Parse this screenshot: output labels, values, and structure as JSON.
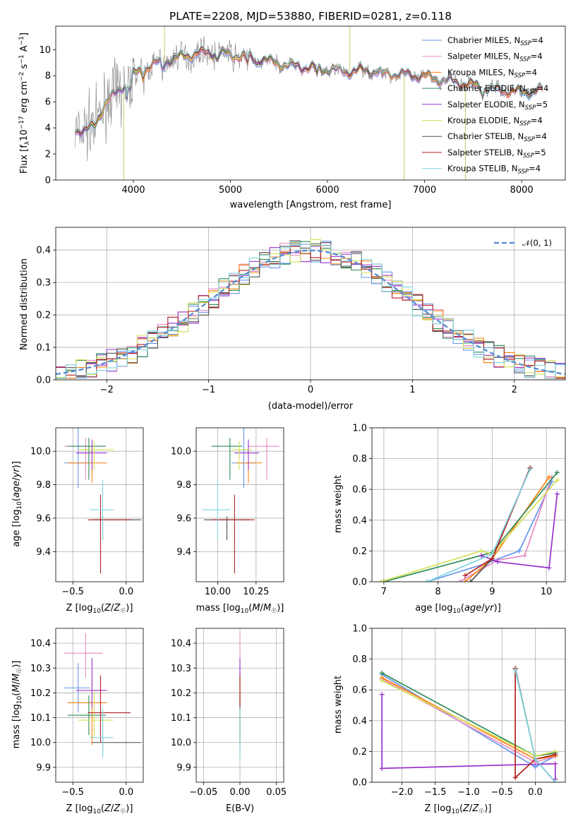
{
  "chart_data": [
    {
      "id": "spectrum",
      "type": "line",
      "title": "PLATE=2208, MJD=53880, FIBERID=0281, z=0.118",
      "xlabel": "wavelength [Angstrom, rest frame]",
      "ylabel": "Flux [fλ10⁻¹⁷ erg cm⁻² s⁻¹ A⁻¹]",
      "xlim": [
        3200,
        8450
      ],
      "ylim": [
        0,
        11.8
      ],
      "xticks": [
        4000,
        5000,
        6000,
        7000,
        8000
      ],
      "yticks": [
        0,
        2,
        4,
        6,
        8,
        10
      ],
      "grid": false,
      "legend_position": "top-right",
      "data_color": "#808080",
      "continuum": {
        "x": [
          3400,
          3500,
          3600,
          3700,
          3800,
          3900,
          4000,
          4200,
          4400,
          4600,
          4800,
          5000,
          5200,
          5400,
          5600,
          5800,
          6000,
          6200,
          6400,
          6600,
          6800,
          7000,
          7200,
          7400,
          7600,
          7800,
          8000,
          8200
        ],
        "y": [
          3.9,
          3.7,
          4.2,
          5.8,
          6.5,
          7.3,
          8.1,
          8.8,
          9.3,
          9.6,
          9.8,
          9.6,
          9.4,
          9.1,
          8.8,
          8.6,
          8.5,
          8.3,
          8.4,
          8.2,
          8.1,
          7.9,
          7.7,
          7.4,
          7.1,
          6.9,
          6.7,
          6.9
        ]
      },
      "series": [
        {
          "name": "Chabrier MILES, N_SSP=4",
          "color": "#6495ed"
        },
        {
          "name": "Salpeter MILES, N_SSP=4",
          "color": "#e78ac3"
        },
        {
          "name": "Kroupa MILES, N_SSP=4",
          "color": "#ff7f0e"
        },
        {
          "name": "Chabrier ELODIE, N_SSP=4",
          "color": "#2e8b57"
        },
        {
          "name": "Salpeter ELODIE, N_SSP=5",
          "color": "#9932cc"
        },
        {
          "name": "Kroupa ELODIE, N_SSP=4",
          "color": "#d4e157"
        },
        {
          "name": "Chabrier STELIB, N_SSP=4",
          "color": "#505050"
        },
        {
          "name": "Salpeter STELIB, N_SSP=5",
          "color": "#b22222"
        },
        {
          "name": "Kroupa STELIB, N_SSP=4",
          "color": "#7fd4e0"
        }
      ]
    },
    {
      "id": "residuals",
      "type": "line",
      "xlabel": "(data-model)/error",
      "ylabel": "Normed distribution",
      "xlim": [
        -2.5,
        2.5
      ],
      "ylim": [
        0,
        0.47
      ],
      "xticks": [
        -2,
        -1,
        0,
        1,
        2
      ],
      "yticks": [
        0.0,
        0.1,
        0.2,
        0.3,
        0.4
      ],
      "grid": true,
      "legend_position": "top-right",
      "reference": {
        "name": "𝒩(0, 1)",
        "mean": 0,
        "sigma": 1,
        "color": "#5b8fd6",
        "style": "dashed"
      },
      "bin_width": 0.1
    },
    {
      "id": "Z-age",
      "type": "scatter",
      "xlabel": "Z [log₁₀(Z/Z☉)]",
      "ylabel": "age  [log₁₀(age/yr)]",
      "xlim": [
        -0.66,
        0.16
      ],
      "ylim": [
        9.22,
        10.14
      ],
      "xticks": [
        -0.5,
        0.0
      ],
      "yticks": [
        9.4,
        9.6,
        9.8,
        10.0
      ],
      "grid": true
    },
    {
      "id": "mass-age",
      "type": "scatter",
      "xlabel": "mass [log₁₀(M/M☉)]",
      "ylabel": "",
      "xlim": [
        9.86,
        10.43
      ],
      "ylim": [
        9.22,
        10.14
      ],
      "xticks": [
        10.0,
        10.25
      ],
      "yticks": [
        9.4,
        9.6,
        9.8,
        10.0
      ],
      "grid": true
    },
    {
      "id": "age-weight",
      "type": "line",
      "xlabel": "age  [log₁₀(age/yr)]",
      "ylabel": "mass weight",
      "xlim": [
        6.78,
        10.35
      ],
      "ylim": [
        0,
        1.0
      ],
      "xticks": [
        7,
        8,
        9,
        10
      ],
      "yticks": [
        0.0,
        0.2,
        0.4,
        0.6,
        0.8,
        1.0
      ],
      "grid": true
    },
    {
      "id": "Z-mass",
      "type": "scatter",
      "xlabel": "Z [log₁₀(Z/Z☉)]",
      "ylabel": "mass [log₁₀(M/M☉)]",
      "xlim": [
        -0.66,
        0.16
      ],
      "ylim": [
        9.84,
        10.46
      ],
      "xticks": [
        -0.5,
        0.0
      ],
      "yticks": [
        9.9,
        10.0,
        10.1,
        10.2,
        10.3,
        10.4
      ],
      "grid": true
    },
    {
      "id": "EBV-mass",
      "type": "scatter",
      "xlabel": "E(B-V)",
      "ylabel": "",
      "xlim": [
        -0.06,
        0.06
      ],
      "ylim": [
        9.84,
        10.46
      ],
      "xticks": [
        -0.05,
        0.0,
        0.05
      ],
      "yticks": [
        9.9,
        10.0,
        10.1,
        10.2,
        10.3,
        10.4
      ],
      "grid": true
    },
    {
      "id": "Z-weight",
      "type": "line",
      "xlabel": "Z [log₁₀(Z/Z☉)]",
      "ylabel": "mass weight",
      "xlim": [
        -2.45,
        0.45
      ],
      "ylim": [
        0,
        1.0
      ],
      "xticks": [
        -2.0,
        -1.5,
        -1.0,
        -0.5,
        0.0
      ],
      "yticks": [
        0.0,
        0.2,
        0.4,
        0.6,
        0.8,
        1.0
      ],
      "grid": true
    }
  ],
  "fits": [
    {
      "color": "#6495ed",
      "Z": [
        -0.45,
        0.13,
        0.11
      ],
      "age": [
        9.93,
        0.15,
        0.24
      ],
      "mass": [
        10.22,
        0.1,
        0.1
      ],
      "mass_age": [
        10.17,
        0.08,
        0.08
      ],
      "aw": [
        [
          7.8,
          0.0
        ],
        [
          8.9,
          0.12
        ],
        [
          9.5,
          0.2
        ],
        [
          10.1,
          0.65
        ]
      ],
      "zw": [
        [
          -2.3,
          0.7
        ],
        [
          0.0,
          0.1
        ],
        [
          0.3,
          0.17
        ]
      ]
    },
    {
      "color": "#e78ac3",
      "Z": [
        -0.38,
        0.2,
        0.16
      ],
      "age": [
        10.03,
        0.2,
        0.05
      ],
      "mass": [
        10.36,
        0.1,
        0.08
      ],
      "mass_age": [
        10.32,
        0.12,
        0.08
      ],
      "aw": [
        [
          8.4,
          0.0
        ],
        [
          9.1,
          0.14
        ],
        [
          9.6,
          0.17
        ],
        [
          10.1,
          0.68
        ]
      ],
      "zw": [
        [
          -2.3,
          0.67
        ],
        [
          0.0,
          0.13
        ],
        [
          0.3,
          0.17
        ]
      ]
    },
    {
      "color": "#ff7f0e",
      "Z": [
        -0.32,
        0.23,
        0.14
      ],
      "age": [
        9.93,
        0.12,
        0.1
      ],
      "mass": [
        10.16,
        0.17,
        0.1
      ],
      "mass_age": [
        10.2,
        0.08,
        0.09
      ],
      "aw": [
        [
          8.5,
          0.0
        ],
        [
          9.0,
          0.15
        ],
        [
          10.05,
          0.68
        ]
      ],
      "zw": [
        [
          -2.3,
          0.68
        ],
        [
          0.0,
          0.15
        ],
        [
          0.3,
          0.17
        ]
      ]
    },
    {
      "color": "#2e8b57",
      "Z": [
        -0.35,
        0.2,
        0.16
      ],
      "age": [
        10.03,
        0.2,
        0.05
      ],
      "mass": [
        10.11,
        0.08,
        0.08
      ],
      "mass_age": [
        10.08,
        0.12,
        0.08
      ],
      "aw": [
        [
          7.0,
          0.0
        ],
        [
          9.0,
          0.19
        ],
        [
          10.2,
          0.71
        ]
      ],
      "zw": [
        [
          -2.3,
          0.71
        ],
        [
          0.0,
          0.17
        ],
        [
          0.3,
          0.19
        ]
      ]
    },
    {
      "color": "#9932cc",
      "Z": [
        -0.32,
        0.15,
        0.14
      ],
      "age": [
        9.99,
        0.1,
        0.08
      ],
      "mass": [
        10.21,
        0.07,
        0.13
      ],
      "mass_age": [
        10.2,
        0.09,
        0.07
      ],
      "aw": [
        [
          8.8,
          0.17
        ],
        [
          9.1,
          0.13
        ],
        [
          10.05,
          0.09
        ],
        [
          10.2,
          0.57
        ]
      ],
      "zw": [
        [
          -2.3,
          0.57
        ],
        [
          -2.3,
          0.09
        ],
        [
          0.3,
          0.12
        ],
        [
          0.3,
          0.02
        ]
      ]
    },
    {
      "color": "#d4e157",
      "Z": [
        -0.3,
        0.15,
        0.18
      ],
      "age": [
        10.01,
        0.12,
        0.05
      ],
      "mass": [
        10.09,
        0.07,
        0.12
      ],
      "mass_age": [
        10.14,
        0.05,
        0.08
      ],
      "aw": [
        [
          6.95,
          0.0
        ],
        [
          8.8,
          0.2
        ],
        [
          9.0,
          0.18
        ],
        [
          10.2,
          0.66
        ]
      ],
      "zw": [
        [
          -2.3,
          0.66
        ],
        [
          0.0,
          0.17
        ],
        [
          0.3,
          0.2
        ]
      ]
    },
    {
      "color": "#505050",
      "Z": [
        -0.22,
        0.1,
        0.36
      ],
      "age": [
        9.59,
        0.12,
        0.02
      ],
      "mass": [
        10.0,
        0.05,
        0.1
      ],
      "mass_age": [
        10.06,
        0.15,
        0.15
      ],
      "aw": [
        [
          8.6,
          0.0
        ],
        [
          9.0,
          0.15
        ],
        [
          9.7,
          0.74
        ]
      ],
      "zw": [
        [
          -0.3,
          0.74
        ],
        [
          0.0,
          0.15
        ],
        [
          0.3,
          0.0
        ]
      ]
    },
    {
      "color": "#b22222",
      "Z": [
        -0.24,
        0.12,
        0.28
      ],
      "age": [
        9.59,
        0.32,
        0.15
      ],
      "mass": [
        10.12,
        0.12,
        0.15
      ],
      "mass_age": [
        10.11,
        0.15,
        0.13
      ],
      "aw": [
        [
          8.5,
          0.04
        ],
        [
          9.0,
          0.15
        ],
        [
          9.7,
          0.74
        ]
      ],
      "zw": [
        [
          -0.3,
          0.74
        ],
        [
          -0.3,
          0.03
        ],
        [
          0.0,
          0.15
        ],
        [
          0.3,
          0.18
        ]
      ]
    },
    {
      "color": "#7fd4e0",
      "Z": [
        -0.22,
        0.12,
        0.1
      ],
      "age": [
        9.65,
        0.18,
        0.18
      ],
      "mass": [
        10.02,
        0.08,
        0.12
      ],
      "mass_age": [
        10.0,
        0.1,
        0.08
      ],
      "aw": [
        [
          7.8,
          0.0
        ],
        [
          9.0,
          0.18
        ],
        [
          9.7,
          0.73
        ]
      ],
      "zw": [
        [
          -0.3,
          0.73
        ],
        [
          0.0,
          0.15
        ],
        [
          0.3,
          0.0
        ]
      ]
    }
  ]
}
